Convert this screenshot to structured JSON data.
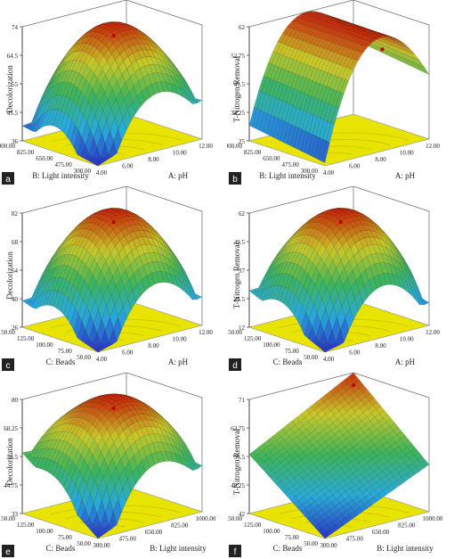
{
  "colors": {
    "floor": "#e8e400",
    "floor_ring": "#c8c400",
    "low": "#2030c0",
    "mid": "#30b060",
    "high": "#c02000"
  },
  "chart_data": [
    {
      "type": "surface",
      "panel": "a",
      "zlabel": "Decolorization",
      "ticks": {
        "z": [
          "74",
          "64.5",
          "55",
          "45.5",
          "36"
        ],
        "x": [
          "4.00",
          "6.00",
          "8.00",
          "10.00",
          "12.00"
        ],
        "y": [
          "300.00",
          "475.00",
          "650.00",
          "825.00",
          "1000.00"
        ]
      },
      "xlabel": "A: pH",
      "ylabel": "B: Light intensity",
      "xlim": [
        4,
        12
      ],
      "ylim": [
        300,
        1000
      ],
      "zlim": [
        36,
        74
      ],
      "shape": "dome",
      "grid_corners": {
        "front_left": 36,
        "front_right": 49,
        "back_left": 41,
        "back_right": 45
      },
      "peak": 74
    },
    {
      "type": "surface",
      "panel": "b",
      "zlabel": "T-Nitrogen Removal",
      "ticks": {
        "z": [
          "62",
          "52.75",
          "43.5",
          "34.25",
          "25"
        ],
        "x": [
          "4.00",
          "6.00",
          "8.00",
          "10.00",
          "12.00"
        ],
        "y": [
          "300.00",
          "475.00",
          "650.00",
          "825.00",
          "1000.00"
        ]
      },
      "xlabel": "A: pH",
      "ylabel": "B: Light intensity",
      "xlim": [
        4,
        12
      ],
      "ylim": [
        300,
        1000
      ],
      "zlim": [
        25,
        62
      ],
      "shape": "ridge",
      "grid_corners": {
        "front_left": 26,
        "front_right": 38,
        "back_left": 30,
        "back_right": 43
      },
      "peak": 62
    },
    {
      "type": "surface",
      "panel": "c",
      "zlabel": "Decolorization",
      "ticks": {
        "z": [
          "82",
          "68",
          "54",
          "40",
          "26"
        ],
        "x": [
          "4.00",
          "6.00",
          "8.00",
          "10.00",
          "12.00"
        ],
        "y": [
          "50.00",
          "75.00",
          "100.00",
          "125.00",
          "150.00"
        ]
      },
      "xlabel": "A: pH",
      "ylabel": "C: Beads",
      "xlim": [
        4,
        12
      ],
      "ylim": [
        50,
        150
      ],
      "zlim": [
        26,
        82
      ],
      "shape": "dome",
      "grid_corners": {
        "front_left": 26,
        "front_right": 40,
        "back_left": 39,
        "back_right": 42
      },
      "peak": 82
    },
    {
      "type": "surface",
      "panel": "d",
      "zlabel": "T-Nitrogen Removal",
      "ticks": {
        "z": [
          "62",
          "49.5",
          "37",
          "24.5",
          "12"
        ],
        "x": [
          "4.00",
          "6.00",
          "8.00",
          "10.00",
          "12.00"
        ],
        "y": [
          "50.00",
          "75.00",
          "100.00",
          "125.00",
          "150.00"
        ]
      },
      "xlabel": "A: pH",
      "ylabel": "C: Beads",
      "xlim": [
        4,
        12
      ],
      "ylim": [
        50,
        150
      ],
      "zlim": [
        12,
        62
      ],
      "shape": "dome",
      "grid_corners": {
        "front_left": 12,
        "front_right": 22,
        "back_left": 28,
        "back_right": 30
      },
      "peak": 62
    },
    {
      "type": "surface",
      "panel": "e",
      "zlabel": "Decolorization",
      "ticks": {
        "z": [
          "80",
          "68.25",
          "56.5",
          "44.75",
          "33"
        ],
        "x": [
          "300.00",
          "475.00",
          "650.00",
          "825.00",
          "1000.00"
        ],
        "y": [
          "50.00",
          "75.00",
          "100.00",
          "125.00",
          "150.00"
        ]
      },
      "xlabel": "B: Light intensity",
      "ylabel": "C: Beads",
      "xlim": [
        300,
        1000
      ],
      "ylim": [
        50,
        150
      ],
      "zlim": [
        33,
        80
      ],
      "shape": "dome",
      "grid_corners": {
        "front_left": 33,
        "front_right": 52,
        "back_left": 58,
        "back_right": 56
      },
      "peak": 80
    },
    {
      "type": "surface",
      "panel": "f",
      "zlabel": "T-Nitrogen Removal",
      "ticks": {
        "z": [
          "71",
          "63.75",
          "56.5",
          "49.25",
          "42"
        ],
        "x": [
          "300.00",
          "475.00",
          "650.00",
          "825.00",
          "1000.00"
        ],
        "y": [
          "50.00",
          "75.00",
          "100.00",
          "125.00",
          "150.00"
        ]
      },
      "xlabel": "B: Light intensity",
      "ylabel": "C: Beads",
      "xlim": [
        300,
        1000
      ],
      "ylim": [
        50,
        150
      ],
      "zlim": [
        42,
        71
      ],
      "shape": "tilted",
      "grid_corners": {
        "front_left": 42,
        "front_right": 54,
        "back_left": 57,
        "back_right": 71
      },
      "peak": 71
    }
  ]
}
